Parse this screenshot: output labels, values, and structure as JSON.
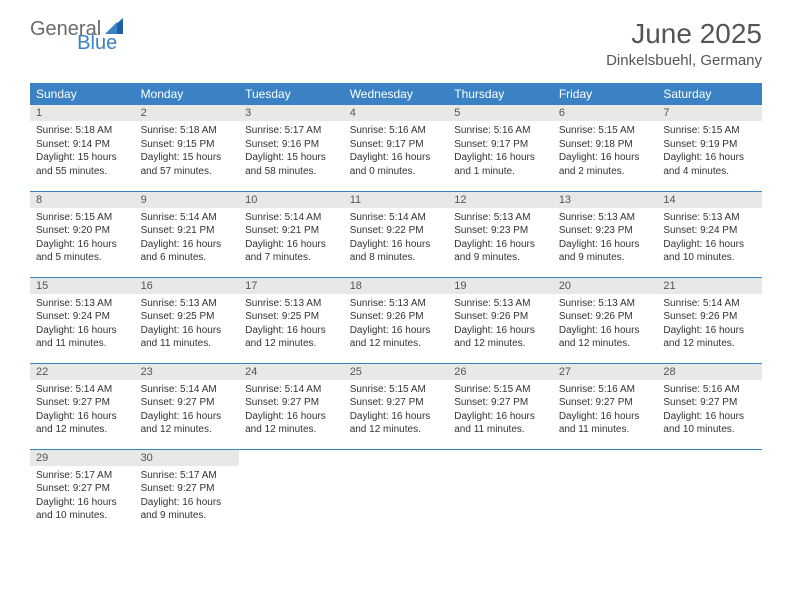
{
  "brand": {
    "part1": "General",
    "part2": "Blue"
  },
  "title": "June 2025",
  "location": "Dinkelsbuehl, Germany",
  "colors": {
    "header_bg": "#3b82c4",
    "header_text": "#ffffff",
    "daynum_bg": "#e8e8e8",
    "text": "#333333",
    "title_text": "#555555"
  },
  "day_headers": [
    "Sunday",
    "Monday",
    "Tuesday",
    "Wednesday",
    "Thursday",
    "Friday",
    "Saturday"
  ],
  "weeks": [
    [
      {
        "n": "1",
        "sr": "Sunrise: 5:18 AM",
        "ss": "Sunset: 9:14 PM",
        "d1": "Daylight: 15 hours",
        "d2": "and 55 minutes."
      },
      {
        "n": "2",
        "sr": "Sunrise: 5:18 AM",
        "ss": "Sunset: 9:15 PM",
        "d1": "Daylight: 15 hours",
        "d2": "and 57 minutes."
      },
      {
        "n": "3",
        "sr": "Sunrise: 5:17 AM",
        "ss": "Sunset: 9:16 PM",
        "d1": "Daylight: 15 hours",
        "d2": "and 58 minutes."
      },
      {
        "n": "4",
        "sr": "Sunrise: 5:16 AM",
        "ss": "Sunset: 9:17 PM",
        "d1": "Daylight: 16 hours",
        "d2": "and 0 minutes."
      },
      {
        "n": "5",
        "sr": "Sunrise: 5:16 AM",
        "ss": "Sunset: 9:17 PM",
        "d1": "Daylight: 16 hours",
        "d2": "and 1 minute."
      },
      {
        "n": "6",
        "sr": "Sunrise: 5:15 AM",
        "ss": "Sunset: 9:18 PM",
        "d1": "Daylight: 16 hours",
        "d2": "and 2 minutes."
      },
      {
        "n": "7",
        "sr": "Sunrise: 5:15 AM",
        "ss": "Sunset: 9:19 PM",
        "d1": "Daylight: 16 hours",
        "d2": "and 4 minutes."
      }
    ],
    [
      {
        "n": "8",
        "sr": "Sunrise: 5:15 AM",
        "ss": "Sunset: 9:20 PM",
        "d1": "Daylight: 16 hours",
        "d2": "and 5 minutes."
      },
      {
        "n": "9",
        "sr": "Sunrise: 5:14 AM",
        "ss": "Sunset: 9:21 PM",
        "d1": "Daylight: 16 hours",
        "d2": "and 6 minutes."
      },
      {
        "n": "10",
        "sr": "Sunrise: 5:14 AM",
        "ss": "Sunset: 9:21 PM",
        "d1": "Daylight: 16 hours",
        "d2": "and 7 minutes."
      },
      {
        "n": "11",
        "sr": "Sunrise: 5:14 AM",
        "ss": "Sunset: 9:22 PM",
        "d1": "Daylight: 16 hours",
        "d2": "and 8 minutes."
      },
      {
        "n": "12",
        "sr": "Sunrise: 5:13 AM",
        "ss": "Sunset: 9:23 PM",
        "d1": "Daylight: 16 hours",
        "d2": "and 9 minutes."
      },
      {
        "n": "13",
        "sr": "Sunrise: 5:13 AM",
        "ss": "Sunset: 9:23 PM",
        "d1": "Daylight: 16 hours",
        "d2": "and 9 minutes."
      },
      {
        "n": "14",
        "sr": "Sunrise: 5:13 AM",
        "ss": "Sunset: 9:24 PM",
        "d1": "Daylight: 16 hours",
        "d2": "and 10 minutes."
      }
    ],
    [
      {
        "n": "15",
        "sr": "Sunrise: 5:13 AM",
        "ss": "Sunset: 9:24 PM",
        "d1": "Daylight: 16 hours",
        "d2": "and 11 minutes."
      },
      {
        "n": "16",
        "sr": "Sunrise: 5:13 AM",
        "ss": "Sunset: 9:25 PM",
        "d1": "Daylight: 16 hours",
        "d2": "and 11 minutes."
      },
      {
        "n": "17",
        "sr": "Sunrise: 5:13 AM",
        "ss": "Sunset: 9:25 PM",
        "d1": "Daylight: 16 hours",
        "d2": "and 12 minutes."
      },
      {
        "n": "18",
        "sr": "Sunrise: 5:13 AM",
        "ss": "Sunset: 9:26 PM",
        "d1": "Daylight: 16 hours",
        "d2": "and 12 minutes."
      },
      {
        "n": "19",
        "sr": "Sunrise: 5:13 AM",
        "ss": "Sunset: 9:26 PM",
        "d1": "Daylight: 16 hours",
        "d2": "and 12 minutes."
      },
      {
        "n": "20",
        "sr": "Sunrise: 5:13 AM",
        "ss": "Sunset: 9:26 PM",
        "d1": "Daylight: 16 hours",
        "d2": "and 12 minutes."
      },
      {
        "n": "21",
        "sr": "Sunrise: 5:14 AM",
        "ss": "Sunset: 9:26 PM",
        "d1": "Daylight: 16 hours",
        "d2": "and 12 minutes."
      }
    ],
    [
      {
        "n": "22",
        "sr": "Sunrise: 5:14 AM",
        "ss": "Sunset: 9:27 PM",
        "d1": "Daylight: 16 hours",
        "d2": "and 12 minutes."
      },
      {
        "n": "23",
        "sr": "Sunrise: 5:14 AM",
        "ss": "Sunset: 9:27 PM",
        "d1": "Daylight: 16 hours",
        "d2": "and 12 minutes."
      },
      {
        "n": "24",
        "sr": "Sunrise: 5:14 AM",
        "ss": "Sunset: 9:27 PM",
        "d1": "Daylight: 16 hours",
        "d2": "and 12 minutes."
      },
      {
        "n": "25",
        "sr": "Sunrise: 5:15 AM",
        "ss": "Sunset: 9:27 PM",
        "d1": "Daylight: 16 hours",
        "d2": "and 12 minutes."
      },
      {
        "n": "26",
        "sr": "Sunrise: 5:15 AM",
        "ss": "Sunset: 9:27 PM",
        "d1": "Daylight: 16 hours",
        "d2": "and 11 minutes."
      },
      {
        "n": "27",
        "sr": "Sunrise: 5:16 AM",
        "ss": "Sunset: 9:27 PM",
        "d1": "Daylight: 16 hours",
        "d2": "and 11 minutes."
      },
      {
        "n": "28",
        "sr": "Sunrise: 5:16 AM",
        "ss": "Sunset: 9:27 PM",
        "d1": "Daylight: 16 hours",
        "d2": "and 10 minutes."
      }
    ],
    [
      {
        "n": "29",
        "sr": "Sunrise: 5:17 AM",
        "ss": "Sunset: 9:27 PM",
        "d1": "Daylight: 16 hours",
        "d2": "and 10 minutes."
      },
      {
        "n": "30",
        "sr": "Sunrise: 5:17 AM",
        "ss": "Sunset: 9:27 PM",
        "d1": "Daylight: 16 hours",
        "d2": "and 9 minutes."
      },
      null,
      null,
      null,
      null,
      null
    ]
  ]
}
